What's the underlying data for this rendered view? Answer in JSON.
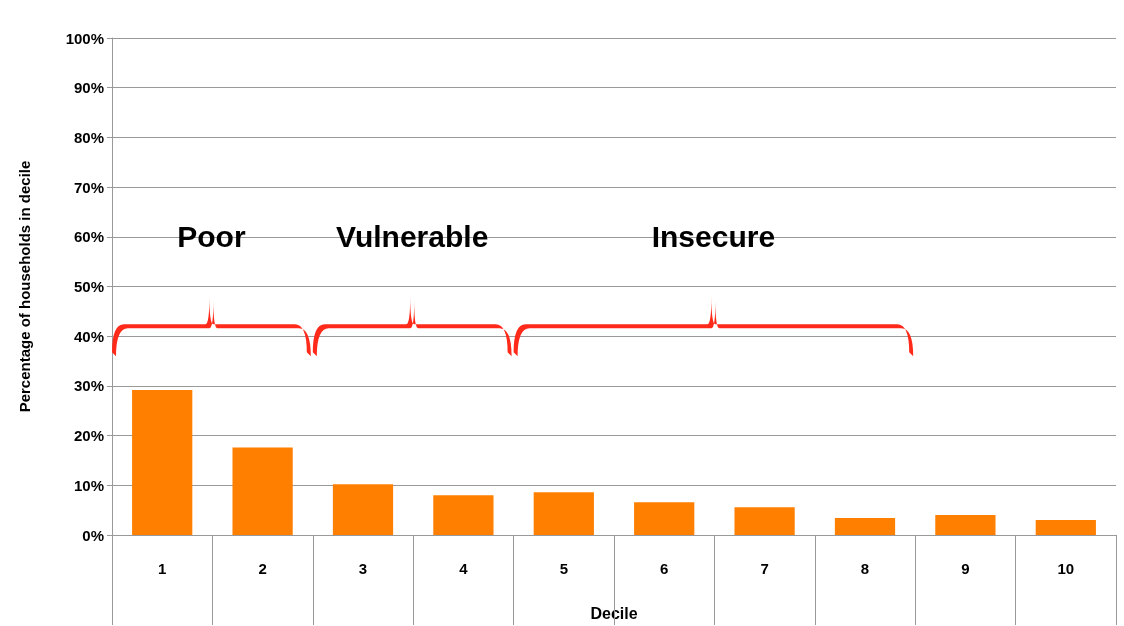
{
  "chart_data": {
    "type": "bar",
    "xlabel": "Decile",
    "ylabel": "Percentage of households in decile",
    "categories": [
      "1",
      "2",
      "3",
      "4",
      "5",
      "6",
      "7",
      "8",
      "9",
      "10"
    ],
    "values": [
      29.2,
      17.6,
      10.2,
      8,
      8.6,
      6.6,
      5.6,
      3.4,
      4,
      3
    ],
    "color": "#ff7f00",
    "ylim": [
      0,
      100
    ],
    "yticks": [
      {
        "value": 0,
        "label": "0%"
      },
      {
        "value": 10,
        "label": "10%"
      },
      {
        "value": 20,
        "label": "20%"
      },
      {
        "value": 30,
        "label": "30%"
      },
      {
        "value": 40,
        "label": "40%"
      },
      {
        "value": 50,
        "label": "50%"
      },
      {
        "value": 60,
        "label": "60%"
      },
      {
        "value": 70,
        "label": "70%"
      },
      {
        "value": 80,
        "label": "80%"
      },
      {
        "value": 90,
        "label": "90%"
      },
      {
        "value": 100,
        "label": "100%"
      }
    ],
    "grid": "y",
    "annotations": [
      "Poor",
      "Vulnerable",
      "Insecure"
    ]
  }
}
